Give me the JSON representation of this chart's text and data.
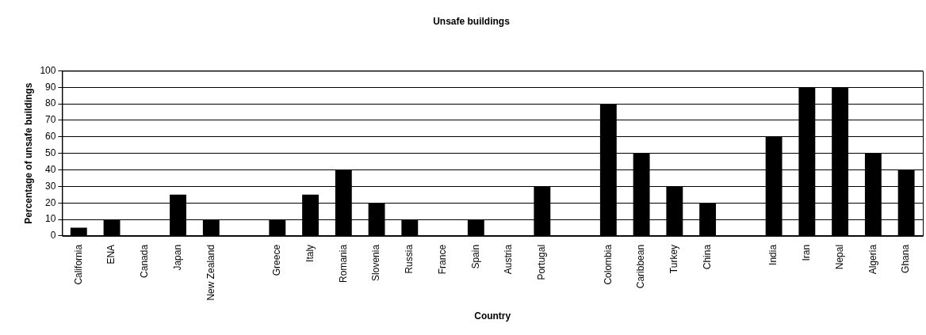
{
  "chart_data": {
    "type": "bar",
    "title": "Unsafe buildings",
    "xlabel": "Country",
    "ylabel": "Percentage of unsafe buildings",
    "categories": [
      "California",
      "ENA",
      "Canada",
      "Japan",
      "New Zealand",
      null,
      "Greece",
      "Italy",
      "Romania",
      "Slovenia",
      "Russia",
      "France",
      "Spain",
      "Austria",
      "Portugal",
      null,
      "Colombia",
      "Caribbean",
      "Turkey",
      "China",
      null,
      "India",
      "Iran",
      "Nepal",
      "Algeria",
      "Ghana"
    ],
    "values": [
      5,
      10,
      0,
      25,
      10,
      null,
      10,
      25,
      40,
      20,
      10,
      0,
      10,
      0,
      30,
      null,
      80,
      50,
      30,
      20,
      null,
      60,
      90,
      90,
      50,
      40
    ],
    "color": "#000000",
    "ylim": [
      0,
      100
    ],
    "yticks": [
      0,
      10,
      20,
      30,
      40,
      50,
      60,
      70,
      80,
      90,
      100
    ],
    "grid": "y",
    "legend": false
  }
}
